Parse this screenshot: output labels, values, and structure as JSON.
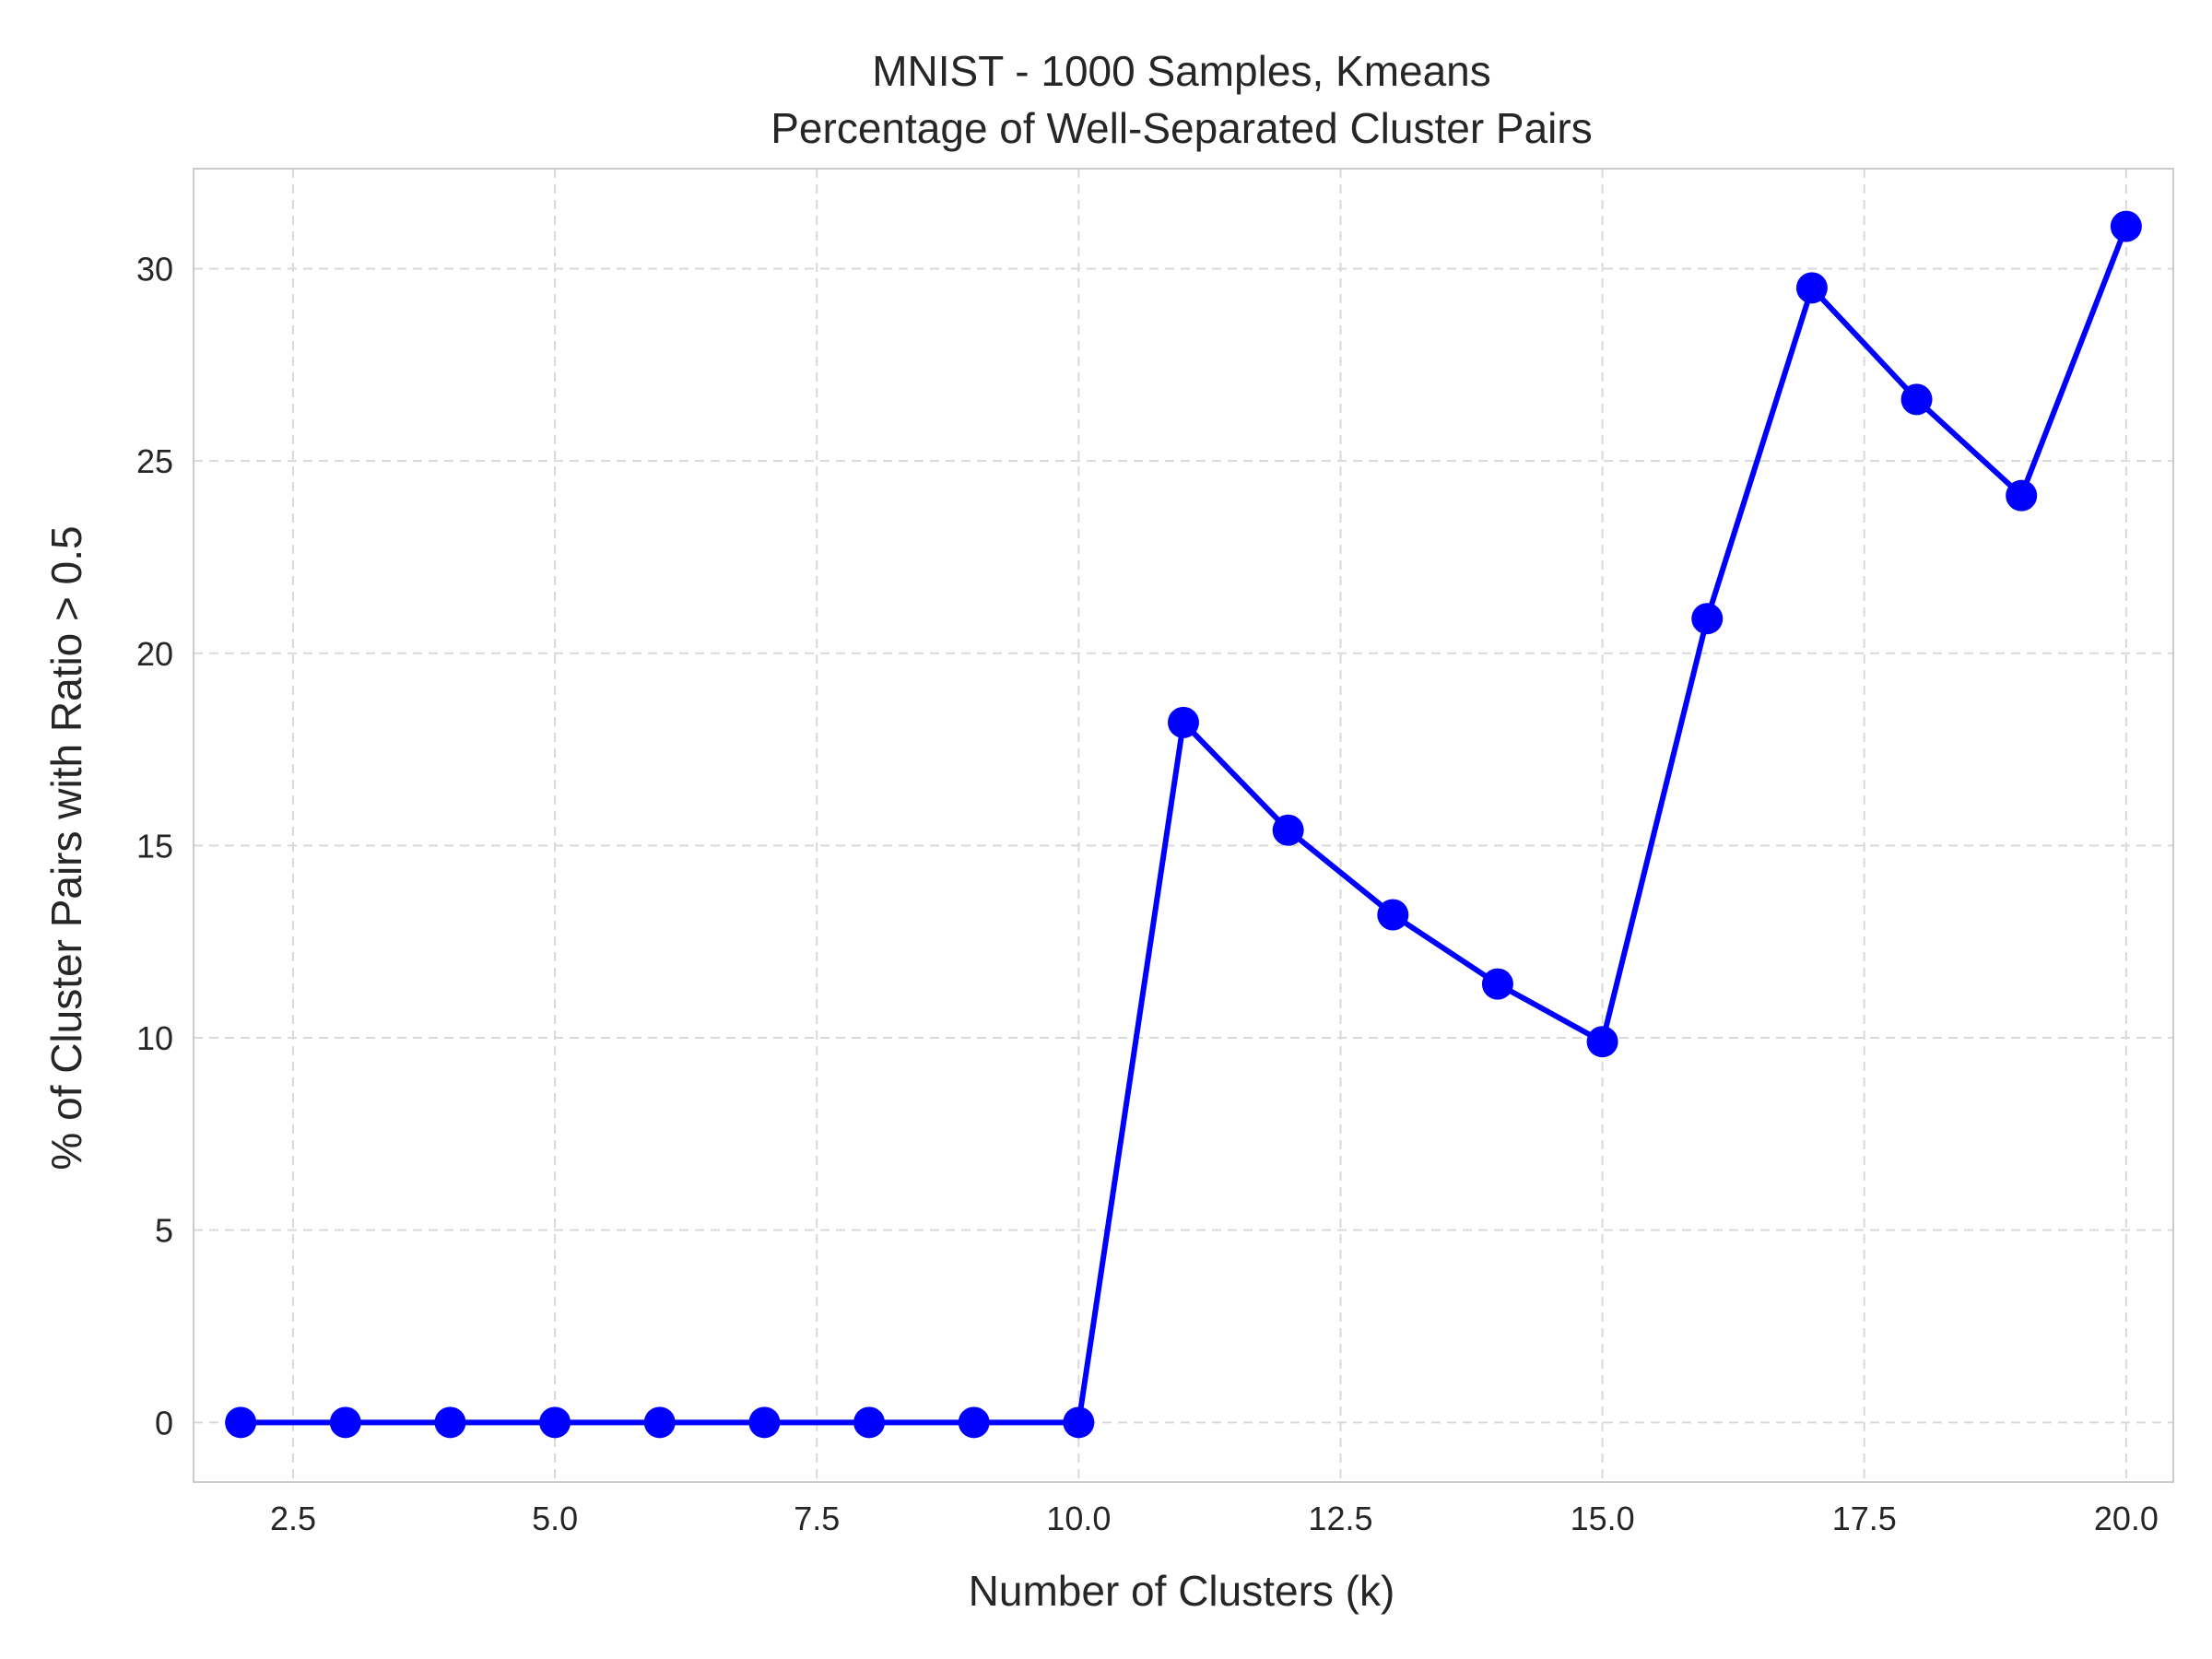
{
  "chart_data": {
    "type": "line",
    "title": "MNIST - 1000 Samples, Kmeans",
    "subtitle": "Percentage of Well-Separated Cluster Pairs",
    "xlabel": "Number of Clusters (k)",
    "ylabel": "% of Cluster Pairs with Ratio > 0.5",
    "xlim": [
      1.55,
      20.45
    ],
    "ylim": [
      -1.55,
      32.6
    ],
    "xticks": [
      2.5,
      5.0,
      7.5,
      10.0,
      12.5,
      15.0,
      17.5,
      20.0
    ],
    "xtick_labels": [
      "2.5",
      "5.0",
      "7.5",
      "10.0",
      "12.5",
      "15.0",
      "17.5",
      "20.0"
    ],
    "yticks": [
      0,
      5,
      10,
      15,
      20,
      25,
      30
    ],
    "ytick_labels": [
      "0",
      "5",
      "10",
      "15",
      "20",
      "25",
      "30"
    ],
    "grid": true,
    "series": [
      {
        "color": "#0000ff",
        "marker": "circle",
        "x": [
          2,
          3,
          4,
          5,
          6,
          7,
          8,
          9,
          10,
          11,
          12,
          13,
          14,
          15,
          16,
          17,
          18,
          19,
          20
        ],
        "values": [
          0,
          0,
          0,
          0,
          0,
          0,
          0,
          0,
          0,
          18.2,
          15.4,
          13.2,
          11.4,
          9.9,
          20.9,
          29.5,
          26.6,
          24.1,
          31.1
        ]
      }
    ]
  }
}
